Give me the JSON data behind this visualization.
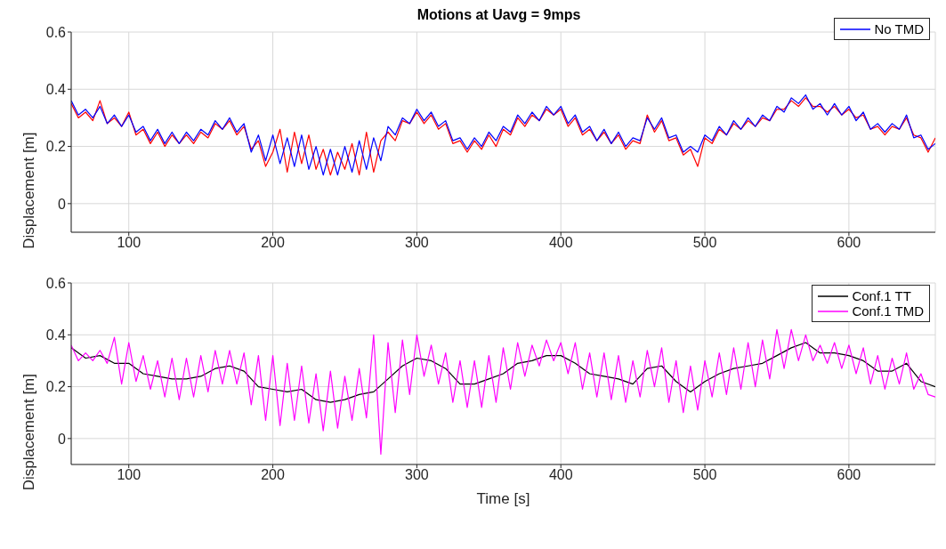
{
  "chart_data": [
    {
      "type": "line",
      "title": "Motions at Uavg = 9mps",
      "ylabel": "Displacement [m]",
      "xlim": [
        60,
        660
      ],
      "xticks": [
        100,
        200,
        300,
        400,
        500,
        600
      ],
      "ylim": [
        -0.1,
        0.6
      ],
      "yticks": [
        0,
        0.2,
        0.4,
        0.6
      ],
      "grid": true,
      "legend": "top right",
      "series": [
        {
          "color": "#ff0000",
          "x": [
            60,
            65,
            70,
            75,
            80,
            85,
            90,
            95,
            100,
            105,
            110,
            115,
            120,
            125,
            130,
            135,
            140,
            145,
            150,
            155,
            160,
            165,
            170,
            175,
            180,
            185,
            190,
            195,
            200,
            205,
            210,
            215,
            220,
            225,
            230,
            235,
            240,
            245,
            250,
            255,
            260,
            265,
            270,
            275,
            280,
            285,
            290,
            295,
            300,
            305,
            310,
            315,
            320,
            325,
            330,
            335,
            340,
            345,
            350,
            355,
            360,
            365,
            370,
            375,
            380,
            385,
            390,
            395,
            400,
            405,
            410,
            415,
            420,
            425,
            430,
            435,
            440,
            445,
            450,
            455,
            460,
            465,
            470,
            475,
            480,
            485,
            490,
            495,
            500,
            505,
            510,
            515,
            520,
            525,
            530,
            535,
            540,
            545,
            550,
            555,
            560,
            565,
            570,
            575,
            580,
            585,
            590,
            595,
            600,
            605,
            610,
            615,
            620,
            625,
            630,
            635,
            640,
            645,
            650,
            655,
            660
          ],
          "values": [
            0.35,
            0.3,
            0.32,
            0.29,
            0.36,
            0.28,
            0.3,
            0.27,
            0.32,
            0.24,
            0.26,
            0.21,
            0.25,
            0.2,
            0.24,
            0.21,
            0.24,
            0.21,
            0.25,
            0.23,
            0.28,
            0.26,
            0.29,
            0.24,
            0.27,
            0.19,
            0.22,
            0.13,
            0.18,
            0.26,
            0.11,
            0.25,
            0.14,
            0.24,
            0.12,
            0.19,
            0.1,
            0.18,
            0.12,
            0.21,
            0.1,
            0.25,
            0.11,
            0.22,
            0.25,
            0.22,
            0.29,
            0.28,
            0.32,
            0.28,
            0.31,
            0.26,
            0.28,
            0.21,
            0.22,
            0.18,
            0.22,
            0.19,
            0.24,
            0.2,
            0.26,
            0.24,
            0.3,
            0.27,
            0.31,
            0.29,
            0.33,
            0.31,
            0.33,
            0.27,
            0.3,
            0.24,
            0.26,
            0.22,
            0.25,
            0.21,
            0.24,
            0.19,
            0.22,
            0.21,
            0.31,
            0.25,
            0.29,
            0.22,
            0.23,
            0.17,
            0.19,
            0.13,
            0.23,
            0.21,
            0.26,
            0.24,
            0.28,
            0.26,
            0.29,
            0.27,
            0.3,
            0.29,
            0.33,
            0.33,
            0.36,
            0.34,
            0.37,
            0.34,
            0.34,
            0.32,
            0.34,
            0.31,
            0.33,
            0.3,
            0.31,
            0.26,
            0.27,
            0.24,
            0.27,
            0.26,
            0.3,
            0.24,
            0.23,
            0.18,
            0.23
          ]
        },
        {
          "name": "No TMD",
          "color": "#0000ff",
          "x": [
            60,
            65,
            70,
            75,
            80,
            85,
            90,
            95,
            100,
            105,
            110,
            115,
            120,
            125,
            130,
            135,
            140,
            145,
            150,
            155,
            160,
            165,
            170,
            175,
            180,
            185,
            190,
            195,
            200,
            205,
            210,
            215,
            220,
            225,
            230,
            235,
            240,
            245,
            250,
            255,
            260,
            265,
            270,
            275,
            280,
            285,
            290,
            295,
            300,
            305,
            310,
            315,
            320,
            325,
            330,
            335,
            340,
            345,
            350,
            355,
            360,
            365,
            370,
            375,
            380,
            385,
            390,
            395,
            400,
            405,
            410,
            415,
            420,
            425,
            430,
            435,
            440,
            445,
            450,
            455,
            460,
            465,
            470,
            475,
            480,
            485,
            490,
            495,
            500,
            505,
            510,
            515,
            520,
            525,
            530,
            535,
            540,
            545,
            550,
            555,
            560,
            565,
            570,
            575,
            580,
            585,
            590,
            595,
            600,
            605,
            610,
            615,
            620,
            625,
            630,
            635,
            640,
            645,
            650,
            655,
            660
          ],
          "values": [
            0.36,
            0.31,
            0.33,
            0.3,
            0.34,
            0.28,
            0.31,
            0.27,
            0.31,
            0.25,
            0.27,
            0.22,
            0.26,
            0.21,
            0.25,
            0.21,
            0.25,
            0.22,
            0.26,
            0.24,
            0.29,
            0.26,
            0.3,
            0.25,
            0.28,
            0.18,
            0.24,
            0.15,
            0.24,
            0.14,
            0.23,
            0.13,
            0.24,
            0.12,
            0.2,
            0.1,
            0.19,
            0.1,
            0.2,
            0.11,
            0.22,
            0.12,
            0.23,
            0.15,
            0.27,
            0.24,
            0.3,
            0.28,
            0.33,
            0.29,
            0.32,
            0.27,
            0.29,
            0.22,
            0.23,
            0.19,
            0.23,
            0.2,
            0.25,
            0.22,
            0.27,
            0.25,
            0.31,
            0.28,
            0.32,
            0.29,
            0.34,
            0.31,
            0.34,
            0.28,
            0.31,
            0.25,
            0.27,
            0.22,
            0.26,
            0.21,
            0.25,
            0.2,
            0.23,
            0.22,
            0.3,
            0.26,
            0.3,
            0.23,
            0.24,
            0.18,
            0.2,
            0.18,
            0.24,
            0.22,
            0.27,
            0.24,
            0.29,
            0.26,
            0.3,
            0.27,
            0.31,
            0.29,
            0.34,
            0.32,
            0.37,
            0.35,
            0.38,
            0.33,
            0.35,
            0.31,
            0.35,
            0.31,
            0.34,
            0.29,
            0.32,
            0.26,
            0.28,
            0.25,
            0.28,
            0.26,
            0.31,
            0.23,
            0.24,
            0.19,
            0.21
          ]
        }
      ]
    },
    {
      "type": "line",
      "xlabel": "Time [s]",
      "ylabel": "Displacement [m]",
      "xlim": [
        60,
        660
      ],
      "xticks": [
        100,
        200,
        300,
        400,
        500,
        600
      ],
      "ylim": [
        -0.1,
        0.6
      ],
      "yticks": [
        0,
        0.2,
        0.4,
        0.6
      ],
      "grid": true,
      "legend": "top right",
      "series": [
        {
          "name": "Conf.1 TT",
          "color": "#000000",
          "x": [
            60,
            70,
            80,
            90,
            100,
            110,
            120,
            130,
            140,
            150,
            160,
            170,
            180,
            190,
            200,
            210,
            220,
            230,
            240,
            250,
            260,
            270,
            280,
            290,
            300,
            310,
            320,
            330,
            340,
            350,
            360,
            370,
            380,
            390,
            400,
            410,
            420,
            430,
            440,
            450,
            460,
            470,
            480,
            490,
            500,
            510,
            520,
            530,
            540,
            550,
            560,
            570,
            580,
            590,
            600,
            610,
            620,
            630,
            640,
            650,
            660
          ],
          "values": [
            0.35,
            0.31,
            0.32,
            0.29,
            0.29,
            0.25,
            0.24,
            0.23,
            0.23,
            0.24,
            0.27,
            0.28,
            0.26,
            0.2,
            0.19,
            0.18,
            0.19,
            0.15,
            0.14,
            0.15,
            0.17,
            0.18,
            0.23,
            0.28,
            0.31,
            0.3,
            0.27,
            0.21,
            0.21,
            0.23,
            0.25,
            0.29,
            0.3,
            0.32,
            0.32,
            0.29,
            0.25,
            0.24,
            0.23,
            0.21,
            0.27,
            0.28,
            0.22,
            0.18,
            0.22,
            0.25,
            0.27,
            0.28,
            0.29,
            0.32,
            0.35,
            0.37,
            0.33,
            0.33,
            0.32,
            0.3,
            0.26,
            0.26,
            0.29,
            0.22,
            0.2
          ]
        },
        {
          "name": "Conf.1 TMD",
          "color": "#ff00ff",
          "x": [
            60,
            65,
            70,
            75,
            80,
            85,
            90,
            95,
            100,
            105,
            110,
            115,
            120,
            125,
            130,
            135,
            140,
            145,
            150,
            155,
            160,
            165,
            170,
            175,
            180,
            185,
            190,
            195,
            200,
            205,
            210,
            215,
            220,
            225,
            230,
            235,
            240,
            245,
            250,
            255,
            260,
            265,
            270,
            275,
            280,
            285,
            290,
            295,
            300,
            305,
            310,
            315,
            320,
            325,
            330,
            335,
            340,
            345,
            350,
            355,
            360,
            365,
            370,
            375,
            380,
            385,
            390,
            395,
            400,
            405,
            410,
            415,
            420,
            425,
            430,
            435,
            440,
            445,
            450,
            455,
            460,
            465,
            470,
            475,
            480,
            485,
            490,
            495,
            500,
            505,
            510,
            515,
            520,
            525,
            530,
            535,
            540,
            545,
            550,
            555,
            560,
            565,
            570,
            575,
            580,
            585,
            590,
            595,
            600,
            605,
            610,
            615,
            620,
            625,
            630,
            635,
            640,
            645,
            650,
            655,
            660
          ],
          "values": [
            0.36,
            0.3,
            0.33,
            0.3,
            0.34,
            0.29,
            0.39,
            0.21,
            0.37,
            0.22,
            0.32,
            0.19,
            0.3,
            0.16,
            0.31,
            0.15,
            0.31,
            0.16,
            0.32,
            0.18,
            0.34,
            0.21,
            0.34,
            0.21,
            0.33,
            0.13,
            0.32,
            0.07,
            0.32,
            0.05,
            0.29,
            0.07,
            0.28,
            0.06,
            0.25,
            0.03,
            0.26,
            0.04,
            0.24,
            0.07,
            0.27,
            0.08,
            0.4,
            -0.06,
            0.37,
            0.1,
            0.38,
            0.17,
            0.4,
            0.24,
            0.36,
            0.21,
            0.33,
            0.14,
            0.3,
            0.12,
            0.3,
            0.12,
            0.32,
            0.14,
            0.35,
            0.19,
            0.37,
            0.24,
            0.36,
            0.28,
            0.38,
            0.3,
            0.37,
            0.25,
            0.37,
            0.19,
            0.33,
            0.16,
            0.33,
            0.15,
            0.32,
            0.14,
            0.3,
            0.16,
            0.34,
            0.2,
            0.35,
            0.14,
            0.3,
            0.1,
            0.28,
            0.11,
            0.3,
            0.16,
            0.33,
            0.17,
            0.35,
            0.19,
            0.37,
            0.2,
            0.38,
            0.23,
            0.42,
            0.27,
            0.42,
            0.3,
            0.4,
            0.3,
            0.36,
            0.29,
            0.37,
            0.27,
            0.36,
            0.25,
            0.35,
            0.21,
            0.32,
            0.19,
            0.31,
            0.21,
            0.33,
            0.19,
            0.25,
            0.17,
            0.16
          ]
        }
      ]
    }
  ]
}
